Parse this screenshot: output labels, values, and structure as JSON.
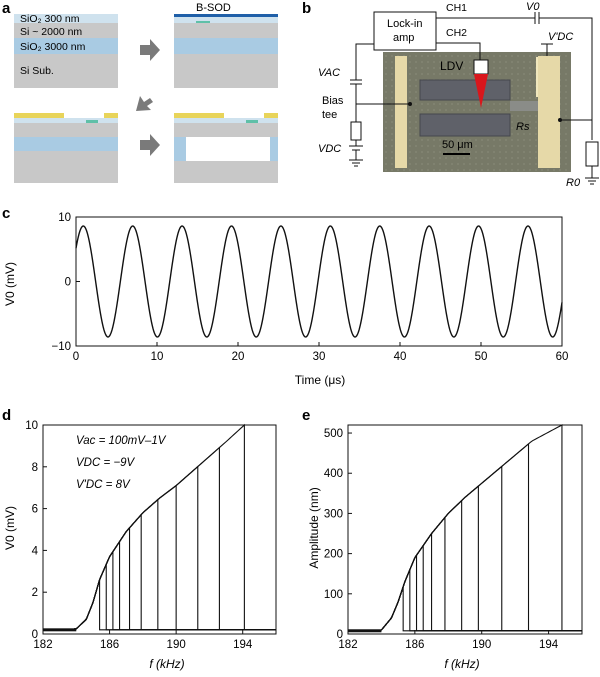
{
  "panels": {
    "a": {
      "label": "a",
      "layers": {
        "sio2_top": "SiO₂ 300 nm",
        "si": "Si ~ 2000 nm",
        "sio2_mid": "SiO₂ 3000 nm",
        "sub": "Si Sub."
      },
      "title_bsod": "B-SOD"
    },
    "b": {
      "label": "b",
      "lockin": "Lock-in",
      "amp": "amp",
      "ch1": "CH1",
      "ch2": "CH2",
      "v0": "V0",
      "vdc_prime": "V'DC",
      "vac": "VAC",
      "bias": "Bias",
      "tee": "tee",
      "vdc": "VDC",
      "ldv": "LDV",
      "scale": "50 μm",
      "rs": "Rs",
      "r0": "R0"
    },
    "c": {
      "label": "c",
      "ylabel": "V0 (mV)",
      "xlabel": "Time (μs)",
      "xticks": [
        "0",
        "10",
        "20",
        "30",
        "40",
        "50",
        "60"
      ],
      "yticks": [
        "10",
        "0",
        "−10"
      ]
    },
    "d": {
      "label": "d",
      "ylabel": "V0 (mV)",
      "xlabel": "f (kHz)",
      "xticks": [
        "182",
        "186",
        "190",
        "194"
      ],
      "yticks": [
        "0",
        "2",
        "4",
        "6",
        "8",
        "10"
      ],
      "legend": [
        "Vac = 100mV–1V",
        "VDC = −9V",
        "V'DC = 8V"
      ]
    },
    "e": {
      "label": "e",
      "ylabel": "Amplitude (nm)",
      "xlabel": "f (kHz)",
      "xticks": [
        "182",
        "186",
        "190",
        "194"
      ],
      "yticks": [
        "0",
        "100",
        "200",
        "300",
        "400",
        "500"
      ]
    }
  },
  "chart_data": [
    {
      "type": "line",
      "panel": "c",
      "xlabel": "Time (μs)",
      "ylabel": "V0 (mV)",
      "xlim": [
        0,
        60
      ],
      "ylim": [
        -10,
        10
      ],
      "series": [
        {
          "amplitude": 8.6,
          "period": 6.1,
          "phase_peak_time": 0.9
        }
      ]
    },
    {
      "type": "line",
      "panel": "d",
      "xlabel": "f (kHz)",
      "ylabel": "V0 (mV)",
      "xlim": [
        182,
        196
      ],
      "ylim": [
        0,
        10
      ],
      "backbone": [
        [
          184.0,
          0.25
        ],
        [
          184.6,
          0.7
        ],
        [
          185.0,
          1.5
        ],
        [
          185.4,
          2.6
        ],
        [
          186.0,
          3.7
        ],
        [
          187.0,
          4.9
        ],
        [
          188.0,
          5.8
        ],
        [
          189.0,
          6.5
        ],
        [
          190.0,
          7.1
        ],
        [
          191.0,
          7.8
        ],
        [
          192.0,
          8.5
        ],
        [
          193.0,
          9.2
        ],
        [
          194.1,
          10.0
        ]
      ],
      "jump_down_frequencies": [
        185.4,
        185.8,
        186.2,
        186.6,
        187.2,
        187.9,
        188.9,
        190.0,
        191.3,
        192.6,
        194.1
      ],
      "baseline": 0.2
    },
    {
      "type": "line",
      "panel": "e",
      "xlabel": "f (kHz)",
      "ylabel": "Amplitude (nm)",
      "xlim": [
        182,
        196
      ],
      "ylim": [
        0,
        520
      ],
      "backbone": [
        [
          184.0,
          10
        ],
        [
          184.6,
          40
        ],
        [
          185.0,
          80
        ],
        [
          185.4,
          130
        ],
        [
          186.0,
          190
        ],
        [
          187.0,
          250
        ],
        [
          188.0,
          300
        ],
        [
          189.0,
          340
        ],
        [
          190.0,
          375
        ],
        [
          191.0,
          410
        ],
        [
          192.0,
          445
        ],
        [
          193.0,
          480
        ],
        [
          194.8,
          520
        ]
      ],
      "jump_down_frequencies": [
        185.3,
        185.7,
        186.1,
        186.5,
        187.0,
        187.8,
        188.8,
        189.8,
        191.2,
        192.8,
        194.8
      ],
      "baseline": 8
    }
  ]
}
